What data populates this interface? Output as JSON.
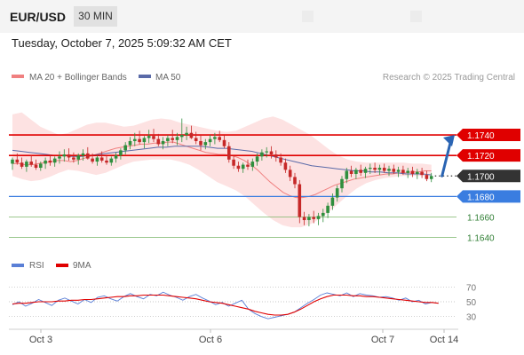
{
  "header": {
    "symbol": "EUR/USD",
    "timeframe": "30 MIN",
    "datetime": "Tuesday, October 7, 2025 5:09:32 AM CET"
  },
  "legend": {
    "ma20_label": "MA 20 + Bollinger Bands",
    "ma50_label": "MA 50",
    "credit": "Research © 2025 Trading Central"
  },
  "rsi_legend": {
    "rsi_label": "RSI",
    "ma9_label": "9MA"
  },
  "colors": {
    "ma20": "#f08080",
    "ma50": "#5a6aa8",
    "bollinger_fill": "#fde2e2",
    "resistance": "#e00000",
    "support": "#3a7de0",
    "minor_support": "#7cb66a",
    "current_price": "#333333",
    "bull_candle": "#2f8f3e",
    "bear_candle": "#c62828",
    "rsi": "#5a7fd6",
    "rsi_ma": "#e00000",
    "arrow": "#2a64b3"
  },
  "chart_data": [
    {
      "type": "candlestick",
      "title": "EUR/USD",
      "timeframe": "30 MIN",
      "ylim": [
        1.1625,
        1.1785
      ],
      "x_ticks": [
        "Oct 3",
        "Oct 6",
        "Oct 7",
        "Oct 14"
      ],
      "grid": false,
      "legend_position": "top-left",
      "levels": [
        {
          "value": 1.174,
          "label": "1.1740",
          "kind": "resistance"
        },
        {
          "value": 1.172,
          "label": "1.1720",
          "kind": "resistance"
        },
        {
          "value": 1.17,
          "label": "1.1700",
          "kind": "current"
        },
        {
          "value": 1.168,
          "label": "1.1680",
          "kind": "support"
        },
        {
          "value": 1.166,
          "label": "1.1660",
          "kind": "minor"
        },
        {
          "value": 1.164,
          "label": "1.1640",
          "kind": "minor"
        }
      ],
      "projection": {
        "from": 1.17,
        "to": 1.174,
        "direction": "up"
      },
      "candles": [
        [
          1.1712,
          1.1718,
          1.1706,
          1.1716
        ],
        [
          1.1716,
          1.1722,
          1.1711,
          1.1713
        ],
        [
          1.1713,
          1.1718,
          1.1707,
          1.1709
        ],
        [
          1.1709,
          1.1716,
          1.1704,
          1.1714
        ],
        [
          1.1714,
          1.172,
          1.1709,
          1.1711
        ],
        [
          1.1711,
          1.1716,
          1.1706,
          1.1708
        ],
        [
          1.1708,
          1.1714,
          1.1705,
          1.1712
        ],
        [
          1.1712,
          1.1718,
          1.1707,
          1.1715
        ],
        [
          1.1715,
          1.1721,
          1.171,
          1.1713
        ],
        [
          1.1713,
          1.1719,
          1.1709,
          1.1717
        ],
        [
          1.1717,
          1.1724,
          1.1712,
          1.1719
        ],
        [
          1.1719,
          1.1726,
          1.1714,
          1.1721
        ],
        [
          1.1721,
          1.1727,
          1.1715,
          1.1718
        ],
        [
          1.1718,
          1.1723,
          1.1713,
          1.1716
        ],
        [
          1.1716,
          1.1722,
          1.1711,
          1.172
        ],
        [
          1.172,
          1.1726,
          1.1715,
          1.1722
        ],
        [
          1.1722,
          1.1728,
          1.1716,
          1.1717
        ],
        [
          1.1717,
          1.1722,
          1.1712,
          1.1714
        ],
        [
          1.1714,
          1.172,
          1.171,
          1.1718
        ],
        [
          1.1718,
          1.1724,
          1.1713,
          1.1715
        ],
        [
          1.1715,
          1.172,
          1.1711,
          1.1713
        ],
        [
          1.1713,
          1.1719,
          1.171,
          1.1717
        ],
        [
          1.1717,
          1.1723,
          1.1713,
          1.172
        ],
        [
          1.172,
          1.1727,
          1.1716,
          1.1725
        ],
        [
          1.1725,
          1.1733,
          1.1721,
          1.173
        ],
        [
          1.173,
          1.1738,
          1.1726,
          1.1734
        ],
        [
          1.1734,
          1.1742,
          1.1729,
          1.1736
        ],
        [
          1.1736,
          1.1744,
          1.1731,
          1.1733
        ],
        [
          1.1733,
          1.1739,
          1.1727,
          1.1737
        ],
        [
          1.1737,
          1.1745,
          1.1732,
          1.1739
        ],
        [
          1.1739,
          1.1746,
          1.1733,
          1.1736
        ],
        [
          1.1736,
          1.1741,
          1.1729,
          1.1731
        ],
        [
          1.1731,
          1.1738,
          1.1726,
          1.1734
        ],
        [
          1.1734,
          1.174,
          1.1729,
          1.1737
        ],
        [
          1.1737,
          1.1745,
          1.1732,
          1.1735
        ],
        [
          1.1735,
          1.1742,
          1.173,
          1.1738
        ],
        [
          1.1738,
          1.1756,
          1.1733,
          1.174
        ],
        [
          1.174,
          1.1748,
          1.1735,
          1.1742
        ],
        [
          1.1742,
          1.1749,
          1.1736,
          1.1737
        ],
        [
          1.1737,
          1.1743,
          1.1731,
          1.1734
        ],
        [
          1.1734,
          1.174,
          1.1725,
          1.173
        ],
        [
          1.173,
          1.1736,
          1.1726,
          1.1733
        ],
        [
          1.1733,
          1.174,
          1.1729,
          1.1736
        ],
        [
          1.1736,
          1.1742,
          1.1731,
          1.1738
        ],
        [
          1.1738,
          1.1744,
          1.1733,
          1.1735
        ],
        [
          1.1735,
          1.174,
          1.1727,
          1.1729
        ],
        [
          1.1729,
          1.1733,
          1.1713,
          1.1716
        ],
        [
          1.1716,
          1.172,
          1.1707,
          1.171
        ],
        [
          1.171,
          1.1714,
          1.1704,
          1.1707
        ],
        [
          1.1707,
          1.1713,
          1.1703,
          1.1711
        ],
        [
          1.1711,
          1.1716,
          1.1706,
          1.1709
        ],
        [
          1.1709,
          1.1717,
          1.1705,
          1.1714
        ],
        [
          1.1714,
          1.1722,
          1.171,
          1.1719
        ],
        [
          1.1719,
          1.1726,
          1.1715,
          1.1723
        ],
        [
          1.1723,
          1.1728,
          1.1718,
          1.1724
        ],
        [
          1.1724,
          1.1729,
          1.1717,
          1.1721
        ],
        [
          1.1721,
          1.1725,
          1.1714,
          1.1718
        ],
        [
          1.1718,
          1.1722,
          1.171,
          1.1713
        ],
        [
          1.1713,
          1.1717,
          1.1703,
          1.1706
        ],
        [
          1.1706,
          1.171,
          1.1695,
          1.1699
        ],
        [
          1.1699,
          1.1703,
          1.1688,
          1.1692
        ],
        [
          1.1692,
          1.1696,
          1.1654,
          1.166
        ],
        [
          1.166,
          1.1665,
          1.1652,
          1.1657
        ],
        [
          1.1657,
          1.1663,
          1.1651,
          1.166
        ],
        [
          1.166,
          1.1666,
          1.1654,
          1.1658
        ],
        [
          1.1658,
          1.1664,
          1.1652,
          1.1661
        ],
        [
          1.1661,
          1.1668,
          1.1655,
          1.1664
        ],
        [
          1.1664,
          1.1674,
          1.1659,
          1.1671
        ],
        [
          1.1671,
          1.1683,
          1.1667,
          1.1679
        ],
        [
          1.1679,
          1.1691,
          1.1675,
          1.1688
        ],
        [
          1.1688,
          1.17,
          1.1684,
          1.1697
        ],
        [
          1.1697,
          1.1708,
          1.1693,
          1.1705
        ],
        [
          1.1705,
          1.171,
          1.1699,
          1.1702
        ],
        [
          1.1702,
          1.1708,
          1.1697,
          1.1706
        ],
        [
          1.1706,
          1.1711,
          1.17,
          1.1703
        ],
        [
          1.1703,
          1.1709,
          1.1698,
          1.1707
        ],
        [
          1.1707,
          1.1712,
          1.1702,
          1.1708
        ],
        [
          1.1708,
          1.1713,
          1.1703,
          1.1706
        ],
        [
          1.1706,
          1.1711,
          1.1701,
          1.1708
        ],
        [
          1.1708,
          1.1712,
          1.1703,
          1.1705
        ],
        [
          1.1705,
          1.171,
          1.17,
          1.1707
        ],
        [
          1.1707,
          1.1711,
          1.1702,
          1.1704
        ],
        [
          1.1704,
          1.1709,
          1.1699,
          1.1706
        ],
        [
          1.1706,
          1.171,
          1.1701,
          1.1703
        ],
        [
          1.1703,
          1.1708,
          1.1698,
          1.1705
        ],
        [
          1.1705,
          1.1709,
          1.1699,
          1.1702
        ],
        [
          1.1702,
          1.1707,
          1.1697,
          1.1704
        ],
        [
          1.1704,
          1.1708,
          1.1698,
          1.1701
        ],
        [
          1.1701,
          1.1705,
          1.1695,
          1.1697
        ],
        [
          1.1697,
          1.1703,
          1.1694,
          1.17
        ]
      ],
      "ma20": [
        1.1712,
        1.1712,
        1.1711,
        1.1711,
        1.1712,
        1.1713,
        1.1714,
        1.1715,
        1.1715,
        1.1714,
        1.1715,
        1.1717,
        1.1719,
        1.1721,
        1.1723,
        1.1725,
        1.1727,
        1.1728,
        1.1729,
        1.173,
        1.1731,
        1.1731,
        1.1732,
        1.1732,
        1.1733,
        1.1733,
        1.1731,
        1.1729,
        1.1727,
        1.1725,
        1.1723,
        1.1722,
        1.1721,
        1.1721,
        1.172,
        1.1718,
        1.1715,
        1.1711,
        1.1706,
        1.17,
        1.1694,
        1.1689,
        1.1684,
        1.1681,
        1.1679,
        1.1679,
        1.168,
        1.1682,
        1.1685,
        1.1688,
        1.1691,
        1.1693,
        1.1695,
        1.1697,
        1.1698,
        1.1699,
        1.17,
        1.1701,
        1.1702,
        1.1702,
        1.1703,
        1.1703,
        1.1704,
        1.1704,
        1.1705,
        1.1705
      ],
      "ma50": [
        1.1725,
        1.1724,
        1.1723,
        1.1722,
        1.1721,
        1.172,
        1.172,
        1.1719,
        1.1719,
        1.172,
        1.1721,
        1.1722,
        1.1723,
        1.1724,
        1.1725,
        1.1726,
        1.1727,
        1.1728,
        1.1728,
        1.1729,
        1.1729,
        1.1729,
        1.1729,
        1.1728,
        1.1727,
        1.1727,
        1.1726,
        1.1725,
        1.1724,
        1.1722,
        1.172,
        1.1718,
        1.1716,
        1.1714,
        1.1712,
        1.171,
        1.1709,
        1.1708,
        1.1707,
        1.1706,
        1.1705,
        1.1705,
        1.1704,
        1.1704,
        1.1703,
        1.1703,
        1.1702,
        1.1702,
        1.1702,
        1.1701
      ],
      "bb_upper": [
        1.176,
        1.1762,
        1.1755,
        1.1748,
        1.1744,
        1.174,
        1.1742,
        1.1746,
        1.175,
        1.1752,
        1.1752,
        1.175,
        1.1748,
        1.1749,
        1.1752,
        1.1755,
        1.1756,
        1.1755,
        1.1752,
        1.175,
        1.1748,
        1.1746,
        1.1744,
        1.1743,
        1.1744,
        1.1748,
        1.1752,
        1.1756,
        1.1758,
        1.1755,
        1.175,
        1.1745,
        1.174,
        1.1733,
        1.1726,
        1.172,
        1.1716,
        1.1714,
        1.1713,
        1.1713,
        1.1713,
        1.1713,
        1.1713,
        1.1712,
        1.1712,
        1.1711
      ],
      "bb_lower": [
        1.17,
        1.1697,
        1.1695,
        1.1696,
        1.1699,
        1.1703,
        1.1706,
        1.1705,
        1.1703,
        1.1701,
        1.1703,
        1.1707,
        1.1711,
        1.1714,
        1.1715,
        1.1716,
        1.1716,
        1.1716,
        1.1714,
        1.1711,
        1.1706,
        1.17,
        1.1694,
        1.169,
        1.1686,
        1.168,
        1.1672,
        1.1664,
        1.1657,
        1.1652,
        1.165,
        1.165,
        1.1653,
        1.1658,
        1.1665,
        1.1673,
        1.1681,
        1.1688,
        1.1693,
        1.1696,
        1.1698,
        1.1699,
        1.17,
        1.17,
        1.17,
        1.17
      ]
    },
    {
      "type": "line",
      "title": "RSI",
      "ylim": [
        20,
        80
      ],
      "y_ticks": [
        30,
        50,
        70
      ],
      "series": [
        {
          "name": "RSI",
          "values": [
            46,
            50,
            44,
            48,
            53,
            49,
            45,
            52,
            55,
            51,
            47,
            53,
            49,
            56,
            58,
            54,
            51,
            57,
            61,
            57,
            54,
            60,
            58,
            63,
            59,
            56,
            52,
            57,
            60,
            55,
            51,
            46,
            49,
            44,
            48,
            52,
            40,
            34,
            30,
            27,
            29,
            31,
            33,
            36,
            42,
            48,
            53,
            59,
            62,
            60,
            58,
            62,
            57,
            61,
            59,
            58,
            56,
            57,
            55,
            52,
            55,
            50,
            52,
            47,
            49,
            48
          ]
        },
        {
          "name": "9MA",
          "values": [
            47,
            48,
            48,
            49,
            50,
            50,
            50,
            51,
            51,
            52,
            52,
            53,
            53,
            54,
            55,
            56,
            57,
            57,
            58,
            58,
            59,
            59,
            59,
            59,
            58,
            57,
            56,
            55,
            54,
            52,
            50,
            49,
            48,
            46,
            44,
            42,
            40,
            37,
            35,
            33,
            32,
            32,
            33,
            36,
            40,
            45,
            50,
            54,
            57,
            59,
            59,
            59,
            58,
            58,
            57,
            57,
            56,
            55,
            54,
            53,
            52,
            51,
            50,
            49,
            49,
            48
          ]
        }
      ]
    }
  ]
}
